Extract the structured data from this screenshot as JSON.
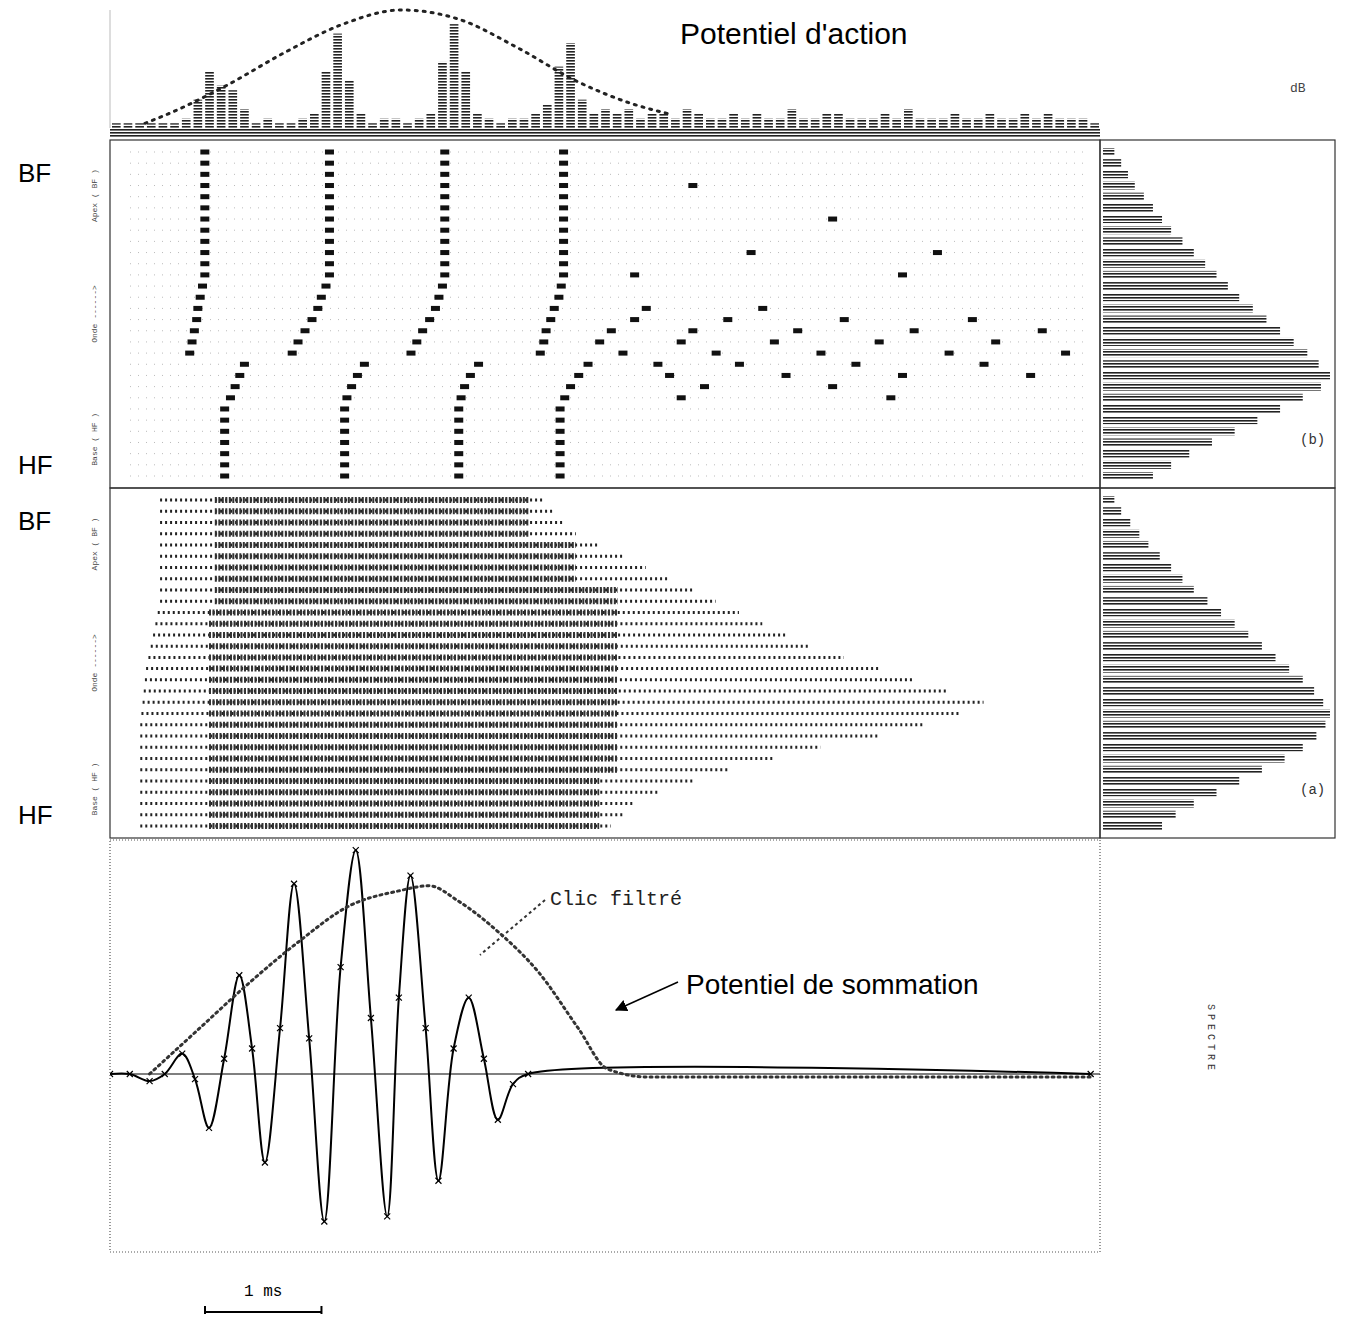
{
  "chart_data": [
    {
      "type": "histogram",
      "title": "Potentiel d'action",
      "unit_label": "dB",
      "xlim": [
        0,
        8.5
      ],
      "ylim": [
        0,
        25
      ],
      "tick_labels": false,
      "bins": [
        0,
        0.1,
        0.2,
        0.3,
        0.4,
        0.5,
        0.6,
        0.7,
        0.8,
        0.9,
        1,
        1.1,
        1.2,
        1.3,
        1.4,
        1.5,
        1.6,
        1.7,
        1.8,
        1.9,
        2,
        2.1,
        2.2,
        2.3,
        2.4,
        2.5,
        2.6,
        2.7,
        2.8,
        2.9,
        3,
        3.1,
        3.2,
        3.3,
        3.4,
        3.5,
        3.6,
        3.7,
        3.8,
        3.9,
        4,
        4.1,
        4.2,
        4.3,
        4.4,
        4.5,
        4.6,
        4.7,
        4.8,
        4.9,
        5,
        5.1,
        5.2,
        5.3,
        5.4,
        5.5,
        5.6,
        5.7,
        5.8,
        5.9,
        6,
        6.1,
        6.2,
        6.3,
        6.4,
        6.5,
        6.6,
        6.7,
        6.8,
        6.9,
        7,
        7.1,
        7.2,
        7.3,
        7.4,
        7.5,
        7.6,
        7.7,
        7.8,
        7.9,
        8,
        8.1,
        8.2,
        8.3,
        8.4,
        8.5
      ],
      "values": [
        1,
        1,
        1,
        1,
        1,
        1,
        2,
        6,
        12,
        9,
        8,
        4,
        1,
        2,
        1,
        1,
        2,
        3,
        12,
        20,
        10,
        3,
        1,
        2,
        2,
        1,
        2,
        3,
        14,
        22,
        12,
        3,
        2,
        1,
        2,
        2,
        3,
        5,
        13,
        18,
        6,
        3,
        4,
        3,
        4,
        2,
        3,
        3,
        2,
        4,
        3,
        2,
        2,
        3,
        2,
        3,
        2,
        2,
        4,
        2,
        2,
        3,
        3,
        2,
        2,
        2,
        3,
        2,
        4,
        2,
        2,
        2,
        3,
        2,
        2,
        3,
        2,
        2,
        3,
        2,
        3,
        2,
        2,
        2,
        1
      ],
      "envelope": {
        "x": [
          0.3,
          0.5,
          1.0,
          1.5,
          2.0,
          2.5,
          3.0,
          3.5,
          4.0,
          4.5,
          4.8
        ],
        "values": [
          1,
          3,
          9,
          16,
          22,
          25,
          23,
          17,
          10,
          5,
          3
        ],
        "line_style": "dotted"
      }
    },
    {
      "type": "raster",
      "panel_label": "(b)",
      "top_label": "BF",
      "bottom_label": "HF",
      "axis_labels": [
        "Apex ( BF )",
        "Onde ------>",
        "Base ( HF )"
      ],
      "xlim": [
        0,
        8.5
      ],
      "tick_labels": false,
      "spectrum_lim": [
        0,
        100
      ],
      "rows": [
        [
          0.81,
          1.88,
          2.87,
          3.89
        ],
        [
          0.81,
          1.88,
          2.87,
          3.89
        ],
        [
          0.81,
          1.88,
          2.87,
          3.89
        ],
        [
          0.81,
          1.88,
          2.87,
          3.89,
          5.0
        ],
        [
          0.81,
          1.88,
          2.87,
          3.89
        ],
        [
          0.81,
          1.88,
          2.87,
          3.89
        ],
        [
          0.81,
          1.88,
          2.87,
          3.89,
          6.2
        ],
        [
          0.81,
          1.88,
          2.87,
          3.89
        ],
        [
          0.81,
          1.88,
          2.87,
          3.89
        ],
        [
          0.81,
          1.88,
          2.87,
          3.89,
          5.5,
          7.1
        ],
        [
          0.81,
          1.88,
          2.87,
          3.89
        ],
        [
          0.81,
          1.88,
          2.87,
          3.89,
          4.5,
          6.8
        ],
        [
          0.79,
          1.85,
          2.85,
          3.87
        ],
        [
          0.77,
          1.81,
          2.82,
          3.85
        ],
        [
          0.75,
          1.78,
          2.79,
          3.81,
          4.6,
          5.6
        ],
        [
          0.74,
          1.73,
          2.74,
          3.78,
          4.5,
          5.3,
          6.3,
          7.4
        ],
        [
          0.72,
          1.67,
          2.68,
          3.74,
          4.3,
          5.0,
          5.9,
          6.9,
          8.0
        ],
        [
          0.7,
          1.61,
          2.63,
          3.72,
          4.2,
          4.9,
          5.7,
          6.6,
          7.6
        ],
        [
          0.68,
          1.56,
          2.58,
          3.69,
          4.4,
          5.2,
          6.1,
          7.2,
          8.2
        ],
        [
          1.15,
          2.18,
          3.16,
          4.1,
          4.7,
          5.4,
          6.4,
          7.5
        ],
        [
          1.11,
          2.12,
          3.09,
          4.02,
          4.8,
          5.8,
          6.8,
          7.9
        ],
        [
          1.07,
          2.07,
          3.04,
          3.95,
          5.1,
          6.2
        ],
        [
          1.03,
          2.03,
          3.01,
          3.9,
          4.9,
          6.7
        ],
        [
          0.98,
          2.01,
          2.99,
          3.86
        ],
        [
          0.98,
          2.01,
          2.99,
          3.86
        ],
        [
          0.98,
          2.01,
          2.99,
          3.86
        ],
        [
          0.98,
          2.01,
          2.99,
          3.86
        ],
        [
          0.98,
          2.01,
          2.99,
          3.86
        ],
        [
          0.98,
          2.01,
          2.99,
          3.86
        ],
        [
          0.98,
          2.01,
          2.99,
          3.86
        ]
      ],
      "spectrum": [
        5,
        8,
        11,
        14,
        18,
        22,
        26,
        30,
        35,
        40,
        45,
        50,
        55,
        60,
        66,
        72,
        78,
        84,
        90,
        95,
        100,
        96,
        88,
        78,
        68,
        58,
        48,
        38,
        30,
        22
      ]
    },
    {
      "type": "rows",
      "panel_label": "(a)",
      "top_label": "BF",
      "bottom_label": "HF",
      "axis_labels": [
        "Apex ( BF )",
        "Onde ------>",
        "Base ( HF )"
      ],
      "xlim": [
        0,
        8.5
      ],
      "tick_labels": false,
      "spectrum_lim": [
        0,
        100
      ],
      "onsets": [
        0.43,
        0.43,
        0.43,
        0.43,
        0.43,
        0.43,
        0.43,
        0.43,
        0.43,
        0.43,
        0.41,
        0.39,
        0.37,
        0.35,
        0.33,
        0.31,
        0.3,
        0.29,
        0.28,
        0.27,
        0.26,
        0.26,
        0.26,
        0.26,
        0.26,
        0.26,
        0.26,
        0.26,
        0.26,
        0.26
      ],
      "offsets": [
        3.72,
        3.8,
        3.9,
        4.0,
        4.2,
        4.4,
        4.6,
        4.8,
        5.0,
        5.2,
        5.4,
        5.6,
        5.8,
        6.0,
        6.3,
        6.6,
        6.9,
        7.2,
        7.5,
        7.3,
        7.0,
        6.6,
        6.1,
        5.7,
        5.3,
        5.0,
        4.7,
        4.5,
        4.4,
        4.3
      ],
      "core_onsets": [
        0.9,
        0.9,
        0.9,
        0.9,
        0.9,
        0.9,
        0.9,
        0.9,
        0.9,
        0.9,
        0.85,
        0.85,
        0.85,
        0.85,
        0.85,
        0.85,
        0.85,
        0.85,
        0.85,
        0.85,
        0.85,
        0.85,
        0.85,
        0.85,
        0.85,
        0.85,
        0.85,
        0.85,
        0.85,
        0.85
      ],
      "core_offsets": [
        3.6,
        3.6,
        3.6,
        3.6,
        4.0,
        4.0,
        4.0,
        4.0,
        4.36,
        4.36,
        4.36,
        4.36,
        4.36,
        4.36,
        4.36,
        4.36,
        4.36,
        4.36,
        4.36,
        4.36,
        4.36,
        4.36,
        4.36,
        4.36,
        4.36,
        4.2,
        4.2,
        4.2,
        4.2,
        4.2
      ],
      "spectrum": [
        5,
        8,
        12,
        16,
        20,
        25,
        30,
        35,
        40,
        46,
        52,
        58,
        64,
        70,
        76,
        82,
        88,
        93,
        97,
        100,
        98,
        94,
        88,
        80,
        70,
        60,
        50,
        40,
        32,
        26
      ]
    },
    {
      "type": "line",
      "xlim": [
        0,
        8.5
      ],
      "ylim": [
        -1.75,
        2.3
      ],
      "tick_labels": false,
      "spectrum_label": "SPECTRE",
      "scale_bar": {
        "value": 1,
        "label": "1 ms"
      },
      "series": [
        {
          "name": "Clic filtré",
          "color": "#000000",
          "line_style": "solid",
          "marker": "x",
          "x": [
            0,
            0.17,
            0.34,
            0.47,
            0.62,
            0.73,
            0.85,
            0.98,
            1.11,
            1.22,
            1.33,
            1.46,
            1.58,
            1.71,
            1.84,
            1.98,
            2.11,
            2.24,
            2.38,
            2.48,
            2.58,
            2.71,
            2.82,
            2.95,
            3.08,
            3.21,
            3.33,
            3.46,
            3.59,
            8.42
          ],
          "values": [
            0,
            0,
            -0.07,
            0,
            0.2,
            -0.05,
            -0.53,
            0.15,
            0.97,
            0.25,
            -0.87,
            0.45,
            1.87,
            0.35,
            -1.45,
            1.05,
            2.2,
            0.55,
            -1.4,
            0.75,
            1.95,
            0.45,
            -1.05,
            0.25,
            0.75,
            0.15,
            -0.45,
            -0.1,
            0,
            0
          ]
        },
        {
          "name": "Potentiel de sommation",
          "color": "#333333",
          "line_style": "dotted",
          "x": [
            0.34,
            0.77,
            1.2,
            1.62,
            2.05,
            2.48,
            2.74,
            2.99,
            3.33,
            3.68,
            4.02,
            4.27,
            4.62,
            8.42
          ],
          "values": [
            0,
            0.45,
            0.9,
            1.3,
            1.65,
            1.8,
            1.85,
            1.7,
            1.4,
            1.0,
            0.45,
            0.05,
            -0.03,
            -0.03
          ]
        }
      ]
    }
  ]
}
